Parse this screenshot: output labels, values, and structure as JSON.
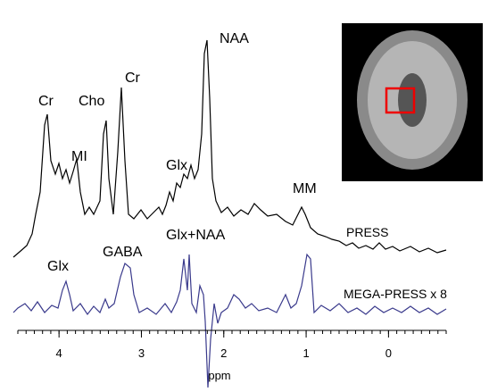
{
  "figure": {
    "axis": {
      "label": "ppm",
      "xlim": [
        4.5,
        -0.7
      ],
      "xticks": [
        4,
        3,
        2,
        1,
        0
      ]
    },
    "press_labels": [
      "Cr",
      "Cho",
      "Cr",
      "NAA",
      "MI",
      "Glx",
      "MM"
    ],
    "trace_names": [
      "PRESS",
      "MEGA-PRESS x 8"
    ],
    "mega_labels": [
      "Glx",
      "GABA",
      "Glx+NAA"
    ]
  }
}
